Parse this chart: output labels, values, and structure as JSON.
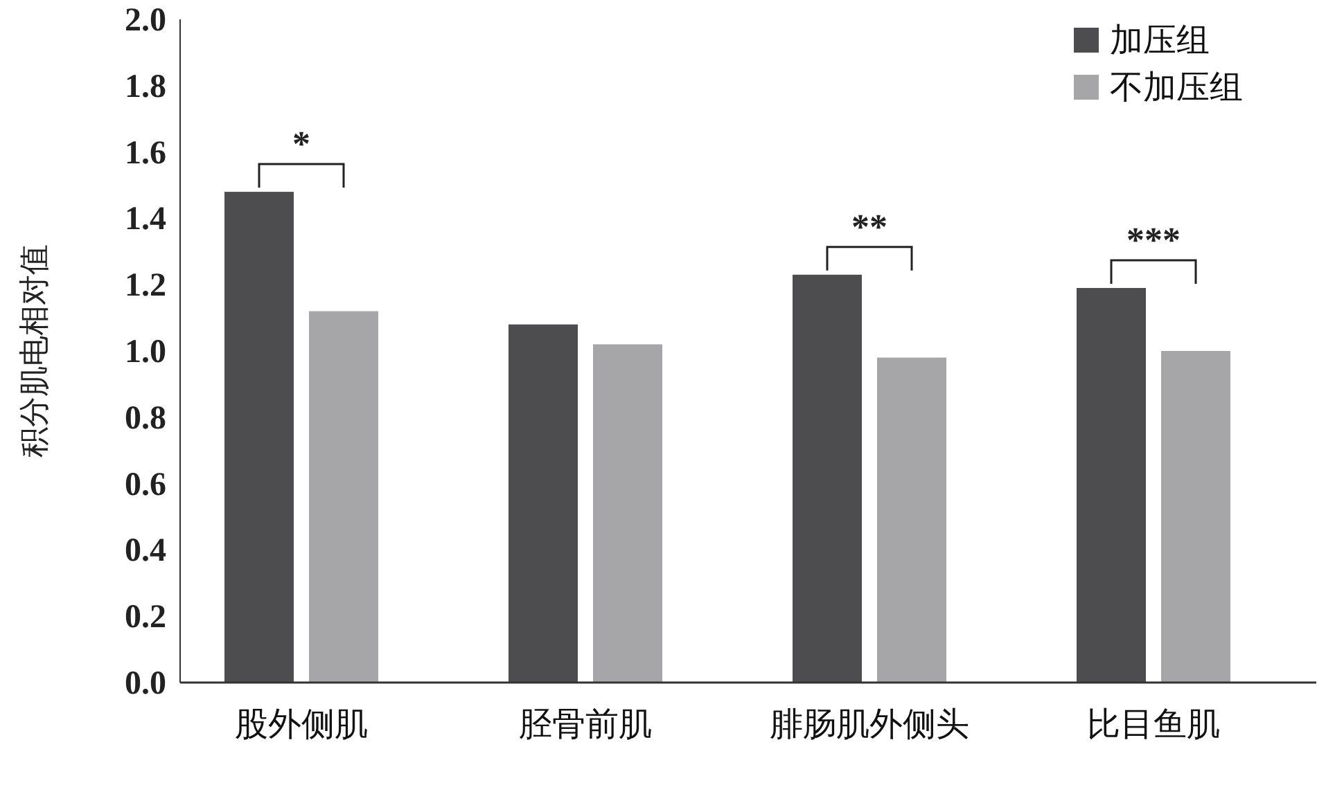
{
  "chart_data": {
    "type": "bar",
    "ylabel": "积分肌电相对值",
    "categories": [
      "股外侧肌",
      "胫骨前肌",
      "腓肠肌外侧头",
      "比目鱼肌"
    ],
    "series": [
      {
        "name": "加压组",
        "color": "#4d4d4f",
        "values": [
          1.48,
          1.08,
          1.23,
          1.19
        ]
      },
      {
        "name": "不加压组",
        "color": "#a6a6a8",
        "values": [
          1.12,
          1.02,
          0.98,
          1.0
        ]
      }
    ],
    "ylim": [
      0,
      2
    ],
    "yticks": [
      {
        "value": 0,
        "label": "0.0"
      },
      {
        "value": 0.2,
        "label": "0.2"
      },
      {
        "value": 0.4,
        "label": "0.4"
      },
      {
        "value": 0.6,
        "label": "0.6"
      },
      {
        "value": 0.8,
        "label": "0.8"
      },
      {
        "value": 1,
        "label": "1.0"
      },
      {
        "value": 1.2,
        "label": "1.2"
      },
      {
        "value": 1.4,
        "label": "1.4"
      },
      {
        "value": 1.6,
        "label": "1.6"
      },
      {
        "value": 1.8,
        "label": "1.8"
      },
      {
        "value": 2,
        "label": "2.0"
      }
    ],
    "annotations": [
      "*",
      "**",
      "***"
    ],
    "grid": false,
    "legend": "top right"
  }
}
